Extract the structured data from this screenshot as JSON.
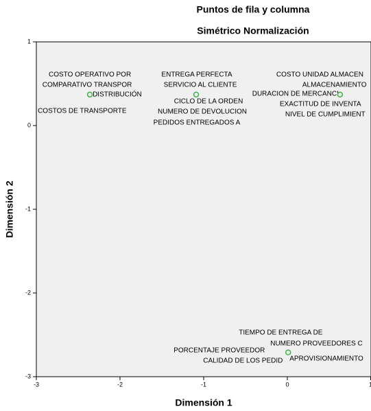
{
  "chart_data": {
    "type": "scatter",
    "title": "Puntos de fila y columna",
    "subtitle": "Simétrico Normalización",
    "x_label": "Dimensión 1",
    "y_label": "Dimensión 2",
    "x": [
      -2.36,
      -1.09,
      0.63,
      0.01
    ],
    "values": [
      0.37,
      0.37,
      0.37,
      -2.71
    ],
    "point_labels": [
      [
        "COSTO OPERATIVO POR",
        "COMPARATIVO TRANSPOR",
        "DISTRIBUCIÓN",
        "COSTOS DE TRANSPORTE"
      ],
      [
        "ENTREGA PERFECTA",
        "SERVICIO AL CLIENTE",
        "CICLO DE LA ORDEN",
        "NUMERO DE DEVOLUCION",
        "PEDIDOS ENTREGADOS A"
      ],
      [
        "COSTO UNIDAD ALMACEN",
        "ALMACENAMIENTO",
        "DURACION DE MERCANCI",
        "EXACTITUD DE INVENTA",
        "NIVEL DE CUMPLIMIENT"
      ],
      [
        "TIEMPO DE ENTREGA DE",
        "NUMERO PROVEEDORES C",
        "PORCENTAJE PROVEEDOR",
        "APROVISIONAMIENTO",
        "CALIDAD DE LOS PEDID"
      ]
    ],
    "color": "#3cb043",
    "xlim": [
      -3,
      1
    ],
    "xticks": [
      -3,
      -2,
      -1,
      0,
      1
    ],
    "ylim": [
      -3,
      1
    ],
    "yticks": [
      -3,
      -2,
      -1,
      0,
      1
    ]
  }
}
